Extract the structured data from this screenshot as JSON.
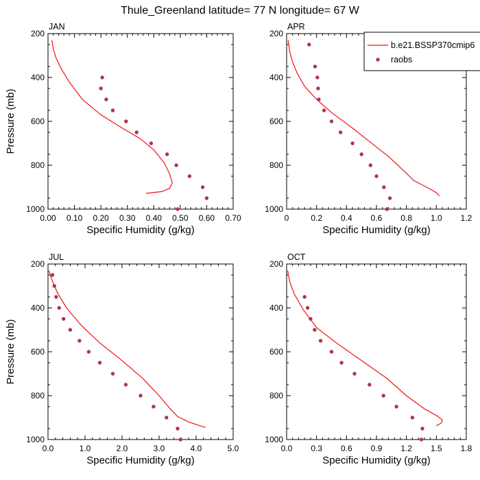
{
  "title": "Thule_Greenland  latitude= 77 N longitude= 67 W",
  "legend": {
    "model_label": "b.e21.BSSP370cmip6",
    "obs_label": "raobs",
    "placement": "top-right of APR panel"
  },
  "colors": {
    "model_line": "#ee1111",
    "obs_marker": "#b0305a",
    "axes": "#000000",
    "background": "#ffffff"
  },
  "chart_data": [
    {
      "type": "line",
      "panel": "JAN",
      "title": "JAN",
      "xlabel": "Specific Humidity (g/kg)",
      "ylabel": "Pressure (mb)",
      "xlim": [
        0,
        0.7
      ],
      "ylim": [
        1000,
        200
      ],
      "xticks": [
        "0.00",
        "0.10",
        "0.20",
        "0.30",
        "0.40",
        "0.50",
        "0.60",
        "0.70"
      ],
      "yticks": [
        "200",
        "400",
        "600",
        "800",
        "1000"
      ],
      "grid": false,
      "series": [
        {
          "name": "b.e21.BSSP370cmip6",
          "kind": "line",
          "points": [
            [
              0.015,
              230
            ],
            [
              0.02,
              270
            ],
            [
              0.03,
              310
            ],
            [
              0.05,
              360
            ],
            [
              0.08,
              420
            ],
            [
              0.13,
              500
            ],
            [
              0.2,
              570
            ],
            [
              0.28,
              630
            ],
            [
              0.35,
              680
            ],
            [
              0.4,
              730
            ],
            [
              0.44,
              790
            ],
            [
              0.46,
              840
            ],
            [
              0.47,
              880
            ],
            [
              0.46,
              905
            ],
            [
              0.43,
              920
            ],
            [
              0.37,
              928
            ]
          ]
        },
        {
          "name": "raobs",
          "kind": "scatter",
          "points": [
            [
              0.205,
              400
            ],
            [
              0.2,
              450
            ],
            [
              0.22,
              500
            ],
            [
              0.245,
              550
            ],
            [
              0.295,
              600
            ],
            [
              0.335,
              650
            ],
            [
              0.39,
              700
            ],
            [
              0.45,
              750
            ],
            [
              0.485,
              800
            ],
            [
              0.535,
              850
            ],
            [
              0.585,
              900
            ],
            [
              0.6,
              950
            ],
            [
              0.49,
              1000
            ]
          ]
        }
      ]
    },
    {
      "type": "line",
      "panel": "APR",
      "title": "APR",
      "xlabel": "Specific Humidity (g/kg)",
      "ylabel": "",
      "xlim": [
        0,
        1.2
      ],
      "ylim": [
        1000,
        200
      ],
      "xticks": [
        "0",
        "0.2",
        "0.4",
        "0.6",
        "0.8",
        "1.0",
        "1.2"
      ],
      "yticks": [
        "200",
        "400",
        "600",
        "800",
        "1000"
      ],
      "grid": false,
      "series": [
        {
          "name": "b.e21.BSSP370cmip6",
          "kind": "line",
          "points": [
            [
              0.01,
              230
            ],
            [
              0.02,
              280
            ],
            [
              0.04,
              330
            ],
            [
              0.07,
              380
            ],
            [
              0.12,
              440
            ],
            [
              0.2,
              500
            ],
            [
              0.3,
              560
            ],
            [
              0.42,
              620
            ],
            [
              0.55,
              690
            ],
            [
              0.68,
              760
            ],
            [
              0.79,
              830
            ],
            [
              0.85,
              870
            ],
            [
              0.95,
              905
            ],
            [
              1.0,
              925
            ],
            [
              1.02,
              940
            ]
          ]
        },
        {
          "name": "raobs",
          "kind": "scatter",
          "points": [
            [
              0.15,
              250
            ],
            [
              0.19,
              350
            ],
            [
              0.205,
              400
            ],
            [
              0.21,
              450
            ],
            [
              0.215,
              500
            ],
            [
              0.25,
              550
            ],
            [
              0.3,
              600
            ],
            [
              0.36,
              650
            ],
            [
              0.44,
              700
            ],
            [
              0.5,
              750
            ],
            [
              0.56,
              800
            ],
            [
              0.6,
              850
            ],
            [
              0.65,
              900
            ],
            [
              0.69,
              950
            ],
            [
              0.67,
              1000
            ]
          ]
        }
      ]
    },
    {
      "type": "line",
      "panel": "JUL",
      "title": "JUL",
      "xlabel": "Specific Humidity (g/kg)",
      "ylabel": "Pressure (mb)",
      "xlim": [
        0,
        5.0
      ],
      "ylim": [
        1000,
        200
      ],
      "xticks": [
        "0.0",
        "1.0",
        "2.0",
        "3.0",
        "4.0",
        "5.0"
      ],
      "yticks": [
        "200",
        "400",
        "600",
        "800",
        "1000"
      ],
      "grid": false,
      "series": [
        {
          "name": "b.e21.BSSP370cmip6",
          "kind": "line",
          "points": [
            [
              0.02,
              230
            ],
            [
              0.1,
              270
            ],
            [
              0.25,
              330
            ],
            [
              0.5,
              400
            ],
            [
              0.9,
              480
            ],
            [
              1.4,
              560
            ],
            [
              2.0,
              640
            ],
            [
              2.55,
              720
            ],
            [
              3.0,
              800
            ],
            [
              3.3,
              860
            ],
            [
              3.5,
              895
            ],
            [
              3.8,
              920
            ],
            [
              4.25,
              945
            ]
          ]
        },
        {
          "name": "raobs",
          "kind": "scatter",
          "points": [
            [
              0.12,
              250
            ],
            [
              0.17,
              300
            ],
            [
              0.22,
              350
            ],
            [
              0.3,
              400
            ],
            [
              0.42,
              450
            ],
            [
              0.6,
              500
            ],
            [
              0.85,
              550
            ],
            [
              1.1,
              600
            ],
            [
              1.4,
              650
            ],
            [
              1.75,
              700
            ],
            [
              2.1,
              750
            ],
            [
              2.5,
              800
            ],
            [
              2.85,
              850
            ],
            [
              3.2,
              900
            ],
            [
              3.5,
              950
            ],
            [
              3.58,
              1000
            ]
          ]
        }
      ]
    },
    {
      "type": "line",
      "panel": "OCT",
      "title": "OCT",
      "xlabel": "Specific Humidity (g/kg)",
      "ylabel": "",
      "xlim": [
        0,
        1.8
      ],
      "ylim": [
        1000,
        200
      ],
      "xticks": [
        "0.0",
        "0.3",
        "0.6",
        "0.9",
        "1.2",
        "1.5",
        "1.8"
      ],
      "yticks": [
        "200",
        "400",
        "600",
        "800",
        "1000"
      ],
      "grid": false,
      "series": [
        {
          "name": "b.e21.BSSP370cmip6",
          "kind": "line",
          "points": [
            [
              0.01,
              230
            ],
            [
              0.03,
              280
            ],
            [
              0.08,
              340
            ],
            [
              0.17,
              410
            ],
            [
              0.3,
              490
            ],
            [
              0.5,
              560
            ],
            [
              0.75,
              640
            ],
            [
              1.0,
              720
            ],
            [
              1.2,
              800
            ],
            [
              1.38,
              860
            ],
            [
              1.5,
              890
            ],
            [
              1.56,
              910
            ],
            [
              1.55,
              925
            ],
            [
              1.5,
              937
            ]
          ]
        },
        {
          "name": "raobs",
          "kind": "scatter",
          "points": [
            [
              0.18,
              350
            ],
            [
              0.21,
              400
            ],
            [
              0.24,
              450
            ],
            [
              0.28,
              500
            ],
            [
              0.34,
              550
            ],
            [
              0.45,
              600
            ],
            [
              0.55,
              650
            ],
            [
              0.68,
              700
            ],
            [
              0.83,
              750
            ],
            [
              0.97,
              800
            ],
            [
              1.1,
              850
            ],
            [
              1.26,
              900
            ],
            [
              1.36,
              950
            ],
            [
              1.35,
              1000
            ]
          ]
        }
      ]
    }
  ]
}
